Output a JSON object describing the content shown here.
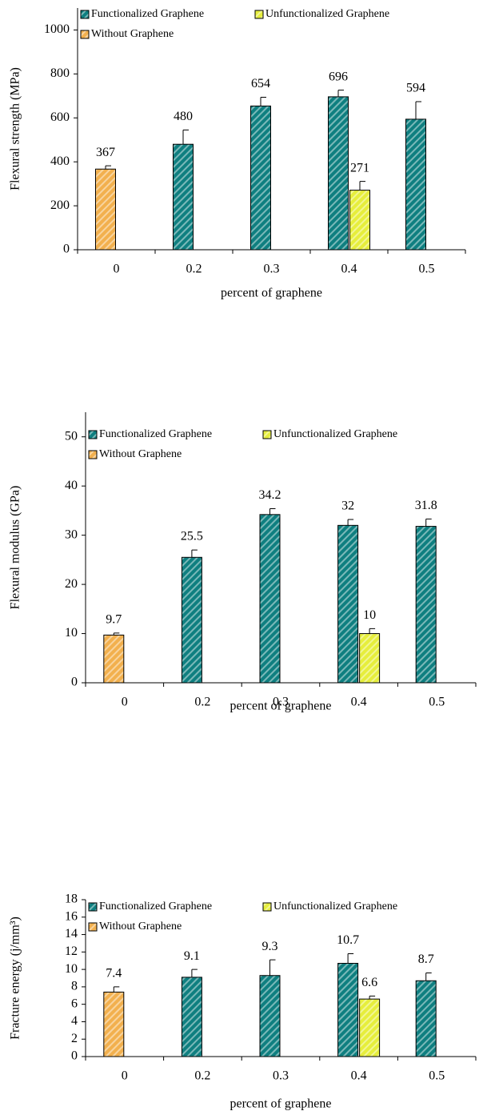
{
  "chart_data": [
    {
      "type": "bar",
      "ylabel": "Flexural strength (MPa)",
      "xlabel": "percent of graphene",
      "categories": [
        "0",
        "0.2",
        "0.3",
        "0.4",
        "0.5"
      ],
      "series": [
        {
          "name": "Functionalized Graphene",
          "color": "#0f7f80",
          "values": [
            null,
            480,
            654,
            696,
            594
          ],
          "errors": [
            null,
            65,
            40,
            30,
            80
          ]
        },
        {
          "name": "Unfunctionalized Graphene",
          "color": "#e6ee3c",
          "values": [
            null,
            null,
            null,
            271,
            null
          ],
          "errors": [
            null,
            null,
            null,
            40,
            null
          ]
        },
        {
          "name": "Without Graphene",
          "color": "#f2b04e",
          "values": [
            367,
            null,
            null,
            null,
            null
          ],
          "errors": [
            15,
            null,
            null,
            null,
            null
          ]
        }
      ],
      "ylim": [
        0,
        1100
      ],
      "yticks": [
        0,
        200,
        400,
        600,
        800,
        1000
      ]
    },
    {
      "type": "bar",
      "ylabel": "Flexural modulus (GPa)",
      "xlabel": "percent of graphene",
      "categories": [
        "0",
        "0.2",
        "0.3",
        "0.4",
        "0.5"
      ],
      "series": [
        {
          "name": "Functionalized Graphene",
          "color": "#0f7f80",
          "values": [
            null,
            25.5,
            34.2,
            32,
            31.8
          ],
          "errors": [
            null,
            1.5,
            1.2,
            1.2,
            1.5
          ]
        },
        {
          "name": "Unfunctionalized Graphene",
          "color": "#e6ee3c",
          "values": [
            null,
            null,
            null,
            10,
            null
          ],
          "errors": [
            null,
            null,
            null,
            1,
            null
          ]
        },
        {
          "name": "Without Graphene",
          "color": "#f2b04e",
          "values": [
            9.7,
            null,
            null,
            null,
            null
          ],
          "errors": [
            0.4,
            null,
            null,
            null,
            null
          ]
        }
      ],
      "ylim": [
        0,
        55
      ],
      "yticks": [
        0,
        10,
        20,
        30,
        40,
        50
      ]
    },
    {
      "type": "bar",
      "ylabel": "Fracture energy (j/mm³)",
      "xlabel": "percent of graphene",
      "categories": [
        "0",
        "0.2",
        "0.3",
        "0.4",
        "0.5"
      ],
      "series": [
        {
          "name": "Functionalized Graphene",
          "color": "#0f7f80",
          "values": [
            null,
            9.1,
            9.3,
            10.7,
            8.7
          ],
          "errors": [
            null,
            0.9,
            1.8,
            1.1,
            0.9
          ]
        },
        {
          "name": "Unfunctionalized Graphene",
          "color": "#e6ee3c",
          "values": [
            null,
            null,
            null,
            6.6,
            null
          ],
          "errors": [
            null,
            null,
            null,
            0.35,
            null
          ]
        },
        {
          "name": "Without Graphene",
          "color": "#f2b04e",
          "values": [
            7.4,
            null,
            null,
            null,
            null
          ],
          "errors": [
            0.6,
            null,
            null,
            null,
            null
          ]
        }
      ],
      "ylim": [
        0,
        18
      ],
      "yticks": [
        0,
        2,
        4,
        6,
        8,
        10,
        12,
        14,
        16,
        18
      ]
    }
  ]
}
